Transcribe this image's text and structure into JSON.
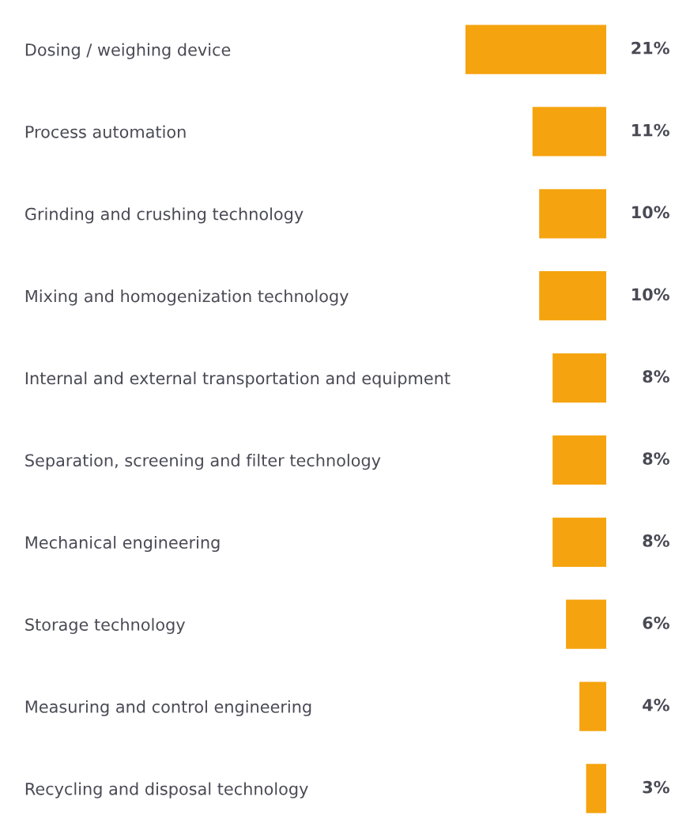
{
  "chart_data": {
    "type": "bar",
    "orientation": "horizontal",
    "categories": [
      "Dosing / weighing device",
      "Process automation",
      "Grinding and crushing technology",
      "Mixing and homogenization technology",
      "Internal and external transportation and equipment",
      "Separation, screening and filter technology",
      "Mechanical engineering",
      "Storage technology",
      "Measuring and control engineering",
      "Recycling and disposal technology"
    ],
    "values": [
      21,
      11,
      10,
      10,
      8,
      8,
      8,
      6,
      4,
      3
    ],
    "value_labels": [
      "21%",
      "11%",
      "10%",
      "10%",
      "8%",
      "8%",
      "8%",
      "6%",
      "4%",
      "3%"
    ],
    "color": "#f5a30f",
    "tick_labels": "y",
    "grid": false,
    "legend": false
  }
}
